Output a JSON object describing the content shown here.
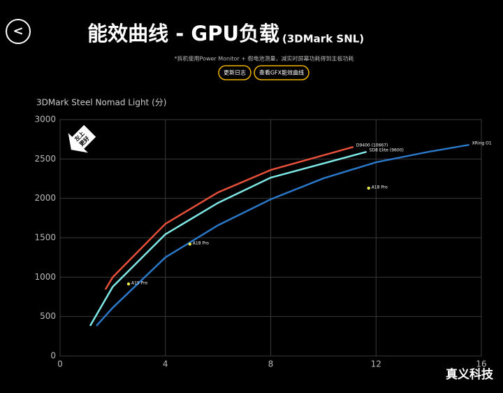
{
  "header": {
    "back": "<",
    "title": "能效曲线 - GPU负载",
    "title_suffix": "(3DMark SNL)",
    "note": "*拆机使用Power Monitor + 假电池测量，减实时屏幕功耗得到主板功耗",
    "buttons": [
      "更新日志",
      "查看GFX能效曲线"
    ]
  },
  "chart_data": {
    "type": "line",
    "y_label": "3DMark Steel Nomad Light (分)",
    "badge": [
      "左上",
      "更好"
    ],
    "xlim": [
      0,
      16
    ],
    "xticks": [
      0,
      4,
      8,
      12,
      16
    ],
    "ylim": [
      0,
      3000
    ],
    "yticks": [
      0,
      500,
      1000,
      1500,
      2000,
      2500,
      3000
    ],
    "grid": true,
    "series": [
      {
        "name": "D9400 (10667)",
        "color": "#e8503a",
        "x": [
          1.72,
          2,
          4,
          6,
          8,
          11.14
        ],
        "values": [
          843,
          1000,
          1677,
          2076,
          2360,
          2653
        ]
      },
      {
        "name": "SD8 Elite (9600)",
        "color": "#7ee8e6",
        "x": [
          1.14,
          2,
          4,
          6,
          8,
          11.64
        ],
        "values": [
          382,
          878,
          1544,
          1943,
          2263,
          2591
        ]
      },
      {
        "name": "XRing O1",
        "color": "#2a78c8",
        "x": [
          1.38,
          2,
          4,
          6,
          8,
          10,
          12,
          14,
          15.54
        ],
        "values": [
          382,
          612,
          1251,
          1659,
          1988,
          2254,
          2458,
          2591,
          2680
        ]
      }
    ],
    "points": {
      "color": "#e8e84a",
      "names": [
        "A15 Pro",
        "A18 Pro",
        "A18 Pro"
      ],
      "x": [
        2.6,
        4.93,
        11.72
      ],
      "values": [
        914,
        1420,
        2130
      ]
    }
  },
  "footer": {
    "watermark": "真义科技"
  }
}
